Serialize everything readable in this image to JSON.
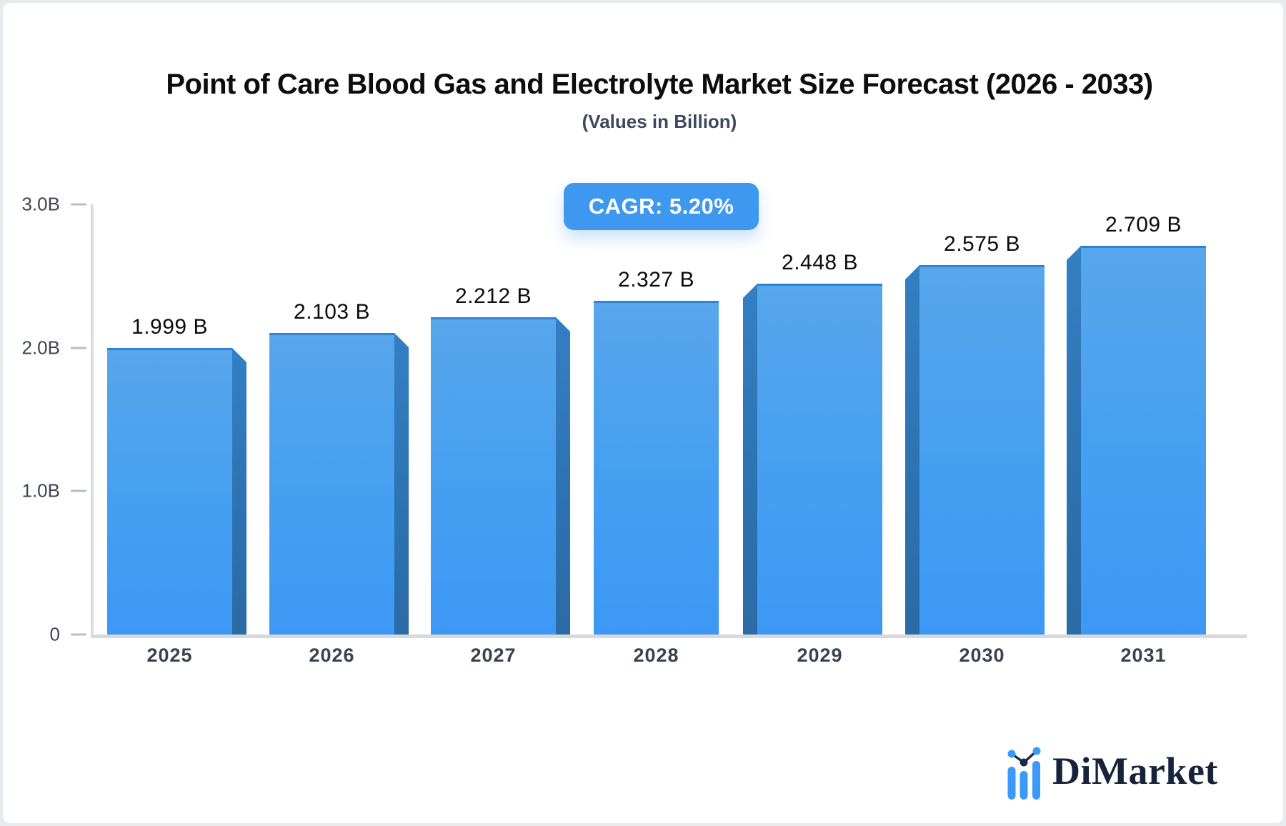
{
  "page": {
    "title": "Point of Care Blood Gas and Electrolyte Market Size Forecast (2026 - 2033)",
    "subtitle": "(Values in Billion)",
    "cagr_label": "CAGR: 5.20%",
    "brand": "DiMarket"
  },
  "colors": {
    "accent_blue": "#3f98ef",
    "bar_face_top": "#58a6eb",
    "bar_face_bottom": "#3d98f5",
    "bar_side": "#2d72b0",
    "axis_line": "#d9dce2",
    "text_dark": "#0d0d0d",
    "text_slate": "#3d4a5e",
    "logo_navy": "#16233b",
    "logo_blue": "#3b9af8"
  },
  "chart_data": {
    "type": "bar",
    "title": "Point of Care Blood Gas and Electrolyte Market Size Forecast (2026 - 2033)",
    "subtitle": "(Values in Billion)",
    "annotation": "CAGR: 5.20%",
    "categories": [
      "2025",
      "2026",
      "2027",
      "2028",
      "2029",
      "2030",
      "2031"
    ],
    "values": [
      1.999,
      2.103,
      2.212,
      2.327,
      2.448,
      2.575,
      2.709
    ],
    "value_labels": [
      "1.999 B",
      "2.103 B",
      "2.212 B",
      "2.327 B",
      "2.448 B",
      "2.575 B",
      "2.709 B"
    ],
    "xlabel": "",
    "ylabel": "",
    "ylim": [
      0,
      3.0
    ],
    "yticks": [
      {
        "value": 3.0,
        "label": "3.0B"
      },
      {
        "value": 2.0,
        "label": "2.0B"
      },
      {
        "value": 1.0,
        "label": "1.0B"
      },
      {
        "value": 0,
        "label": "0"
      }
    ],
    "grid": false,
    "legend": false,
    "style": "3d-perspective-bars"
  }
}
